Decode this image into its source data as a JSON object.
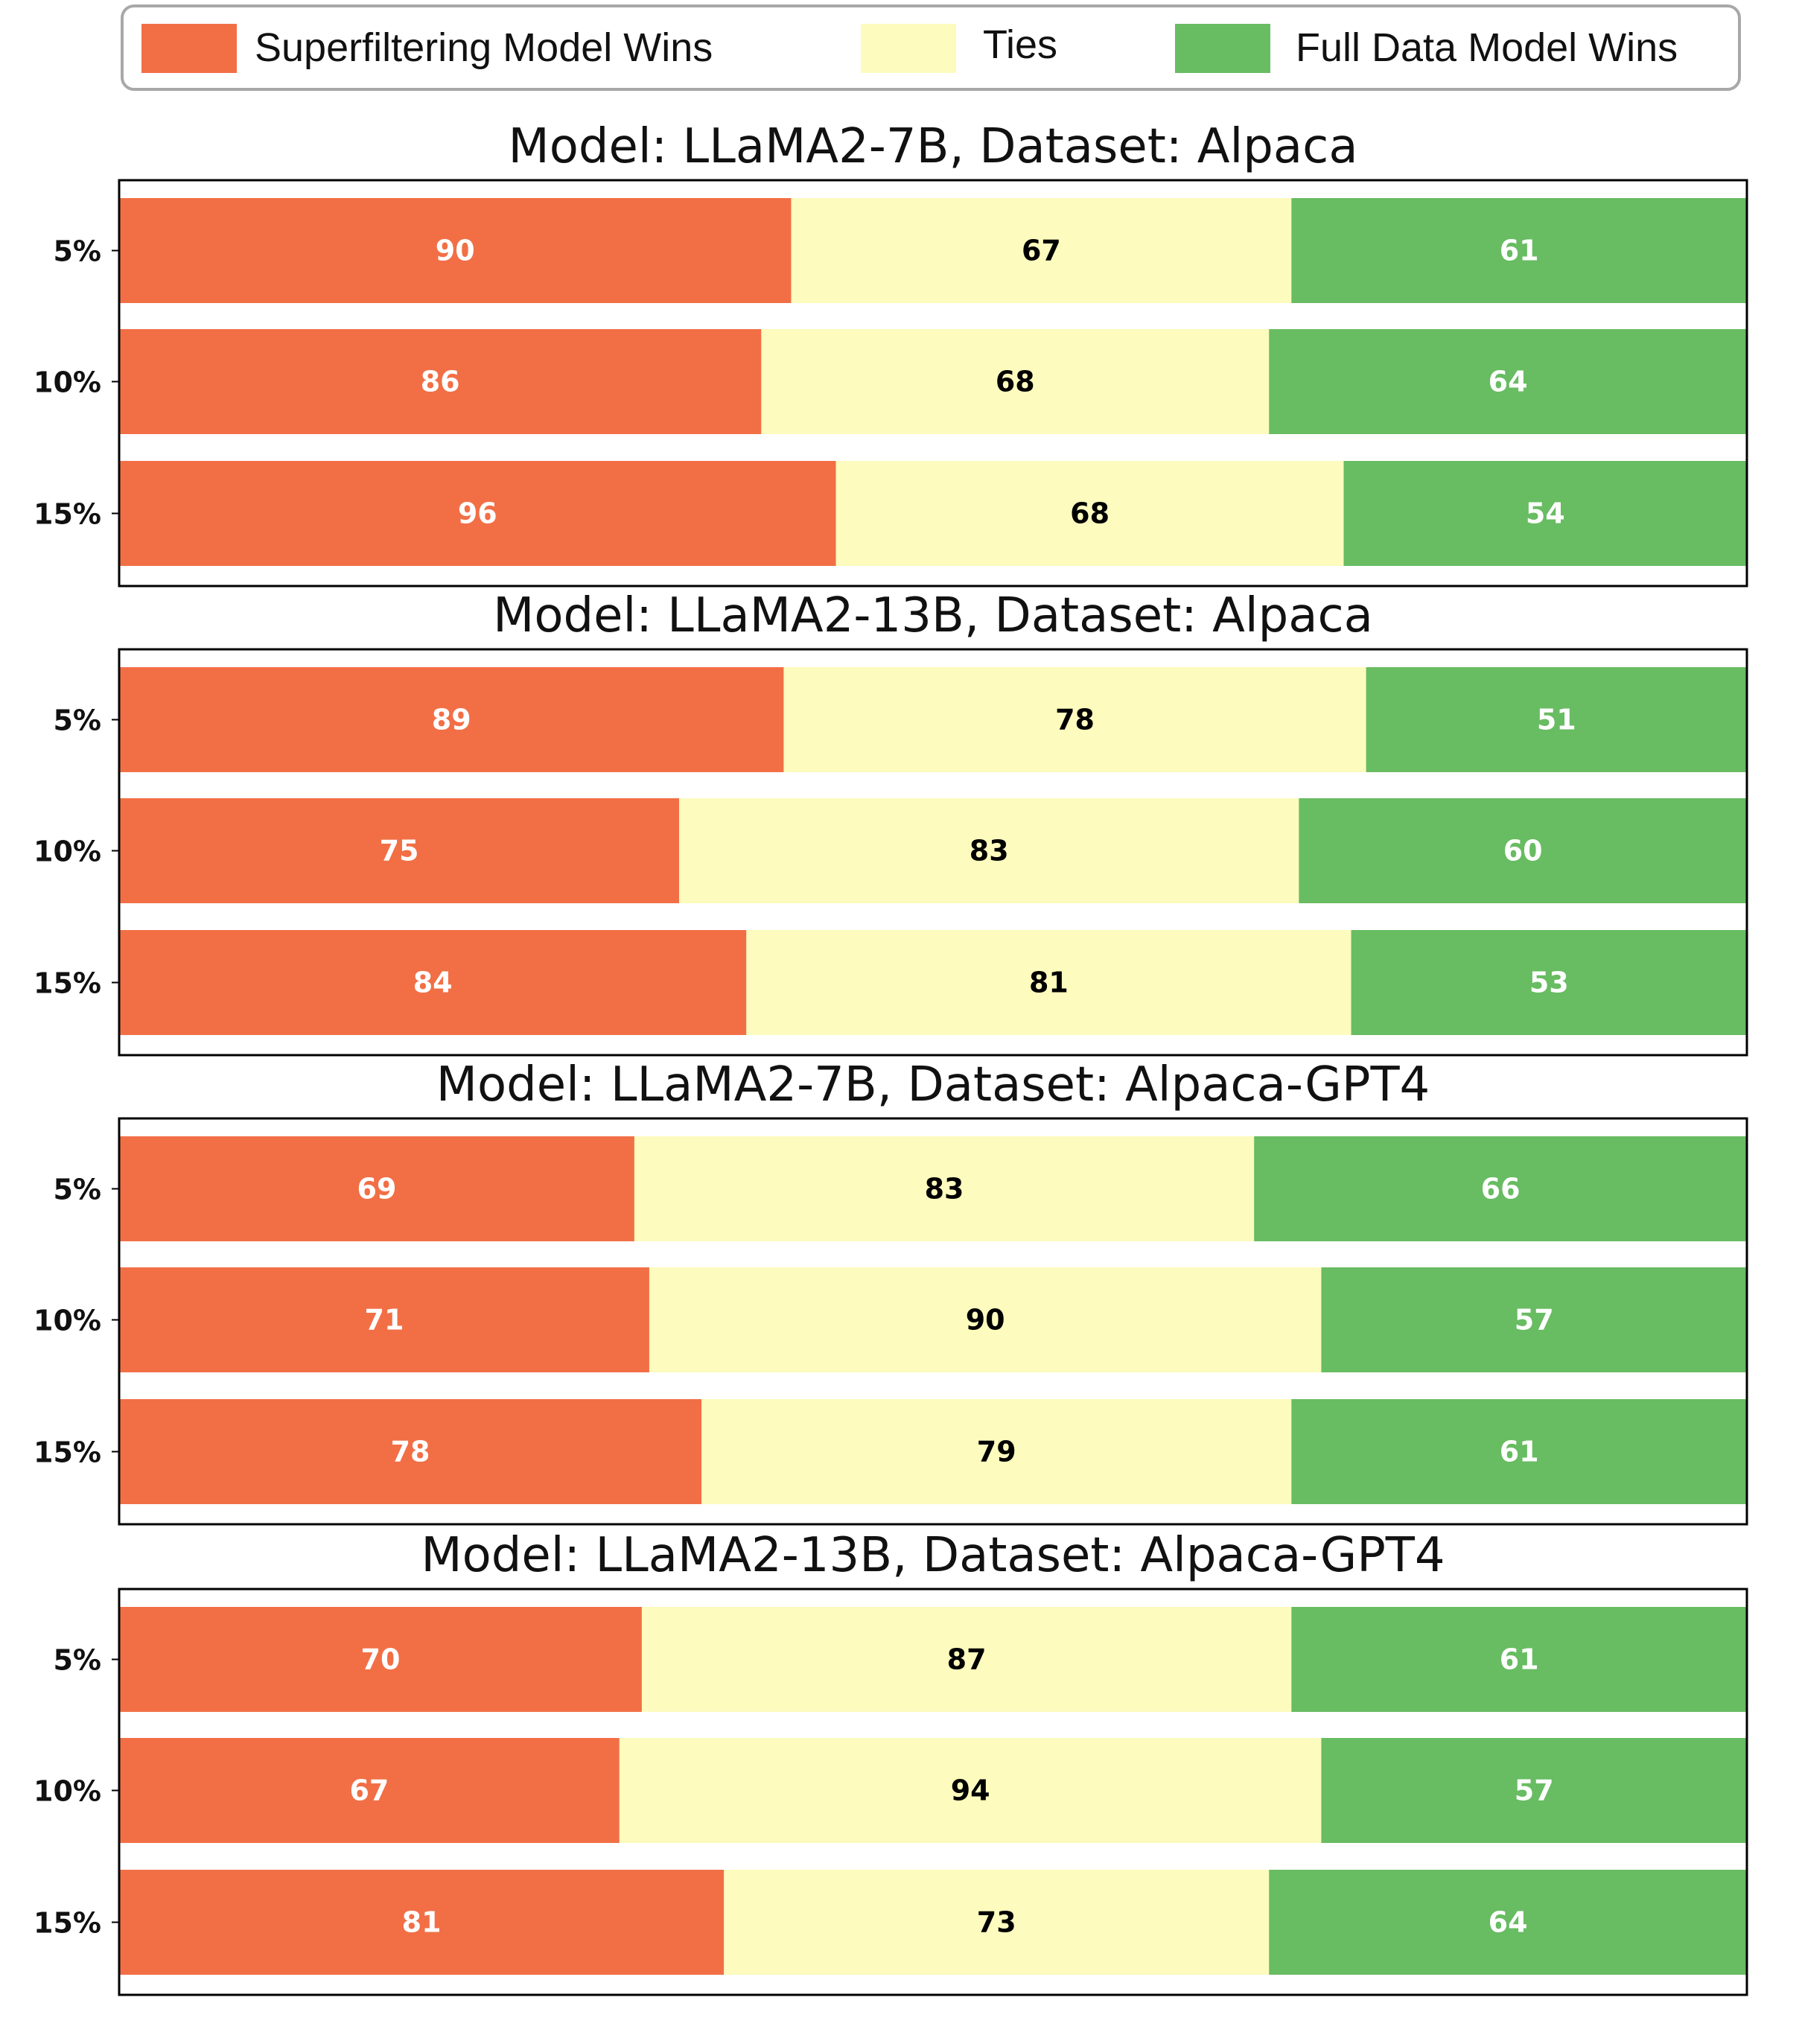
{
  "legend": {
    "items": [
      {
        "label": "Superfiltering Model Wins",
        "color": "#f26f46"
      },
      {
        "label": "Ties",
        "color": "#fdfbbd"
      },
      {
        "label": "Full Data Model Wins",
        "color": "#68bc62"
      }
    ]
  },
  "colors": {
    "superfiltering": "#f26f46",
    "ties": "#fdfbbd",
    "full_data": "#68bc62",
    "label_on_dark": "#ffffff",
    "label_on_light": "#000000"
  },
  "chart_data": [
    {
      "type": "bar",
      "orientation": "horizontal-stacked",
      "title": "Model: LLaMA2-7B, Dataset: Alpaca",
      "categories": [
        "5%",
        "10%",
        "15%"
      ],
      "series": [
        {
          "name": "Superfiltering Model Wins",
          "values": [
            90,
            86,
            96
          ]
        },
        {
          "name": "Ties",
          "values": [
            67,
            68,
            68
          ]
        },
        {
          "name": "Full Data Model Wins",
          "values": [
            61,
            64,
            54
          ]
        }
      ],
      "xlim": [
        0,
        218
      ]
    },
    {
      "type": "bar",
      "orientation": "horizontal-stacked",
      "title": "Model: LLaMA2-13B, Dataset: Alpaca",
      "categories": [
        "5%",
        "10%",
        "15%"
      ],
      "series": [
        {
          "name": "Superfiltering Model Wins",
          "values": [
            89,
            75,
            84
          ]
        },
        {
          "name": "Ties",
          "values": [
            78,
            83,
            81
          ]
        },
        {
          "name": "Full Data Model Wins",
          "values": [
            51,
            60,
            53
          ]
        }
      ],
      "xlim": [
        0,
        218
      ]
    },
    {
      "type": "bar",
      "orientation": "horizontal-stacked",
      "title": "Model: LLaMA2-7B, Dataset: Alpaca-GPT4",
      "categories": [
        "5%",
        "10%",
        "15%"
      ],
      "series": [
        {
          "name": "Superfiltering Model Wins",
          "values": [
            69,
            71,
            78
          ]
        },
        {
          "name": "Ties",
          "values": [
            83,
            90,
            79
          ]
        },
        {
          "name": "Full Data Model Wins",
          "values": [
            66,
            57,
            61
          ]
        }
      ],
      "xlim": [
        0,
        218
      ]
    },
    {
      "type": "bar",
      "orientation": "horizontal-stacked",
      "title": "Model: LLaMA2-13B, Dataset: Alpaca-GPT4",
      "categories": [
        "5%",
        "10%",
        "15%"
      ],
      "series": [
        {
          "name": "Superfiltering Model Wins",
          "values": [
            70,
            67,
            81
          ]
        },
        {
          "name": "Ties",
          "values": [
            87,
            94,
            73
          ]
        },
        {
          "name": "Full Data Model Wins",
          "values": [
            61,
            57,
            64
          ]
        }
      ],
      "xlim": [
        0,
        218
      ]
    }
  ]
}
